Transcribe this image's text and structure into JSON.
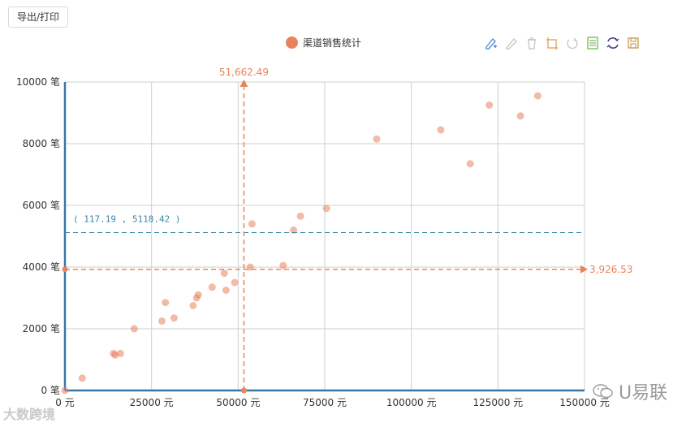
{
  "export_button": {
    "label": "导出/打印"
  },
  "legend": {
    "label": "渠道销售统计",
    "color": "#E8845C"
  },
  "toolbox": {
    "icons": [
      "mark-pen-icon",
      "mark-erase-icon",
      "mark-clear-icon",
      "data-zoom-icon",
      "data-zoom-reset-icon",
      "data-view-icon",
      "restore-icon",
      "save-image-icon"
    ],
    "colors": [
      "#5B8FD6",
      "#c8c8c8",
      "#c8c8c8",
      "#E8A25C",
      "#c8c8c8",
      "#7CBF5C",
      "#3C3C8C",
      "#C9A064"
    ]
  },
  "watermarks": {
    "left": "大数跨境",
    "right": "U易联"
  },
  "chart_data": {
    "type": "scatter",
    "series": [
      {
        "name": "渠道销售统计",
        "color": "#E8845C",
        "points": [
          [
            0,
            0
          ],
          [
            5000,
            400
          ],
          [
            14000,
            1200
          ],
          [
            14500,
            1150
          ],
          [
            16000,
            1200
          ],
          [
            20000,
            2000
          ],
          [
            28000,
            2250
          ],
          [
            29000,
            2850
          ],
          [
            31500,
            2350
          ],
          [
            37000,
            2750
          ],
          [
            38000,
            3000
          ],
          [
            38500,
            3100
          ],
          [
            42500,
            3350
          ],
          [
            46000,
            3800
          ],
          [
            46500,
            3250
          ],
          [
            49000,
            3500
          ],
          [
            53500,
            4000
          ],
          [
            54000,
            5400
          ],
          [
            63000,
            4050
          ],
          [
            66000,
            5200
          ],
          [
            68000,
            5650
          ],
          [
            75500,
            5900
          ],
          [
            90000,
            8150
          ],
          [
            108500,
            8450
          ],
          [
            117000,
            7350
          ],
          [
            122500,
            9250
          ],
          [
            131500,
            8900
          ],
          [
            136500,
            9550
          ]
        ]
      }
    ],
    "x_axis": {
      "min": 0,
      "max": 150000,
      "ticks": [
        0,
        25000,
        50000,
        75000,
        100000,
        125000,
        150000
      ],
      "unit": "元"
    },
    "y_axis": {
      "min": 0,
      "max": 10000,
      "ticks": [
        0,
        2000,
        4000,
        6000,
        8000,
        10000
      ],
      "unit": "笔"
    },
    "grid": true,
    "legend_position": "top-center",
    "mark_lines": {
      "x_average": {
        "value": 51662.49,
        "label": "51,662.49"
      },
      "y_average": {
        "value": 3926.53,
        "label": "3,926.53"
      }
    },
    "crosshair": {
      "y": 5118.42,
      "label": "( 117.19 , 5118.42 )"
    }
  }
}
